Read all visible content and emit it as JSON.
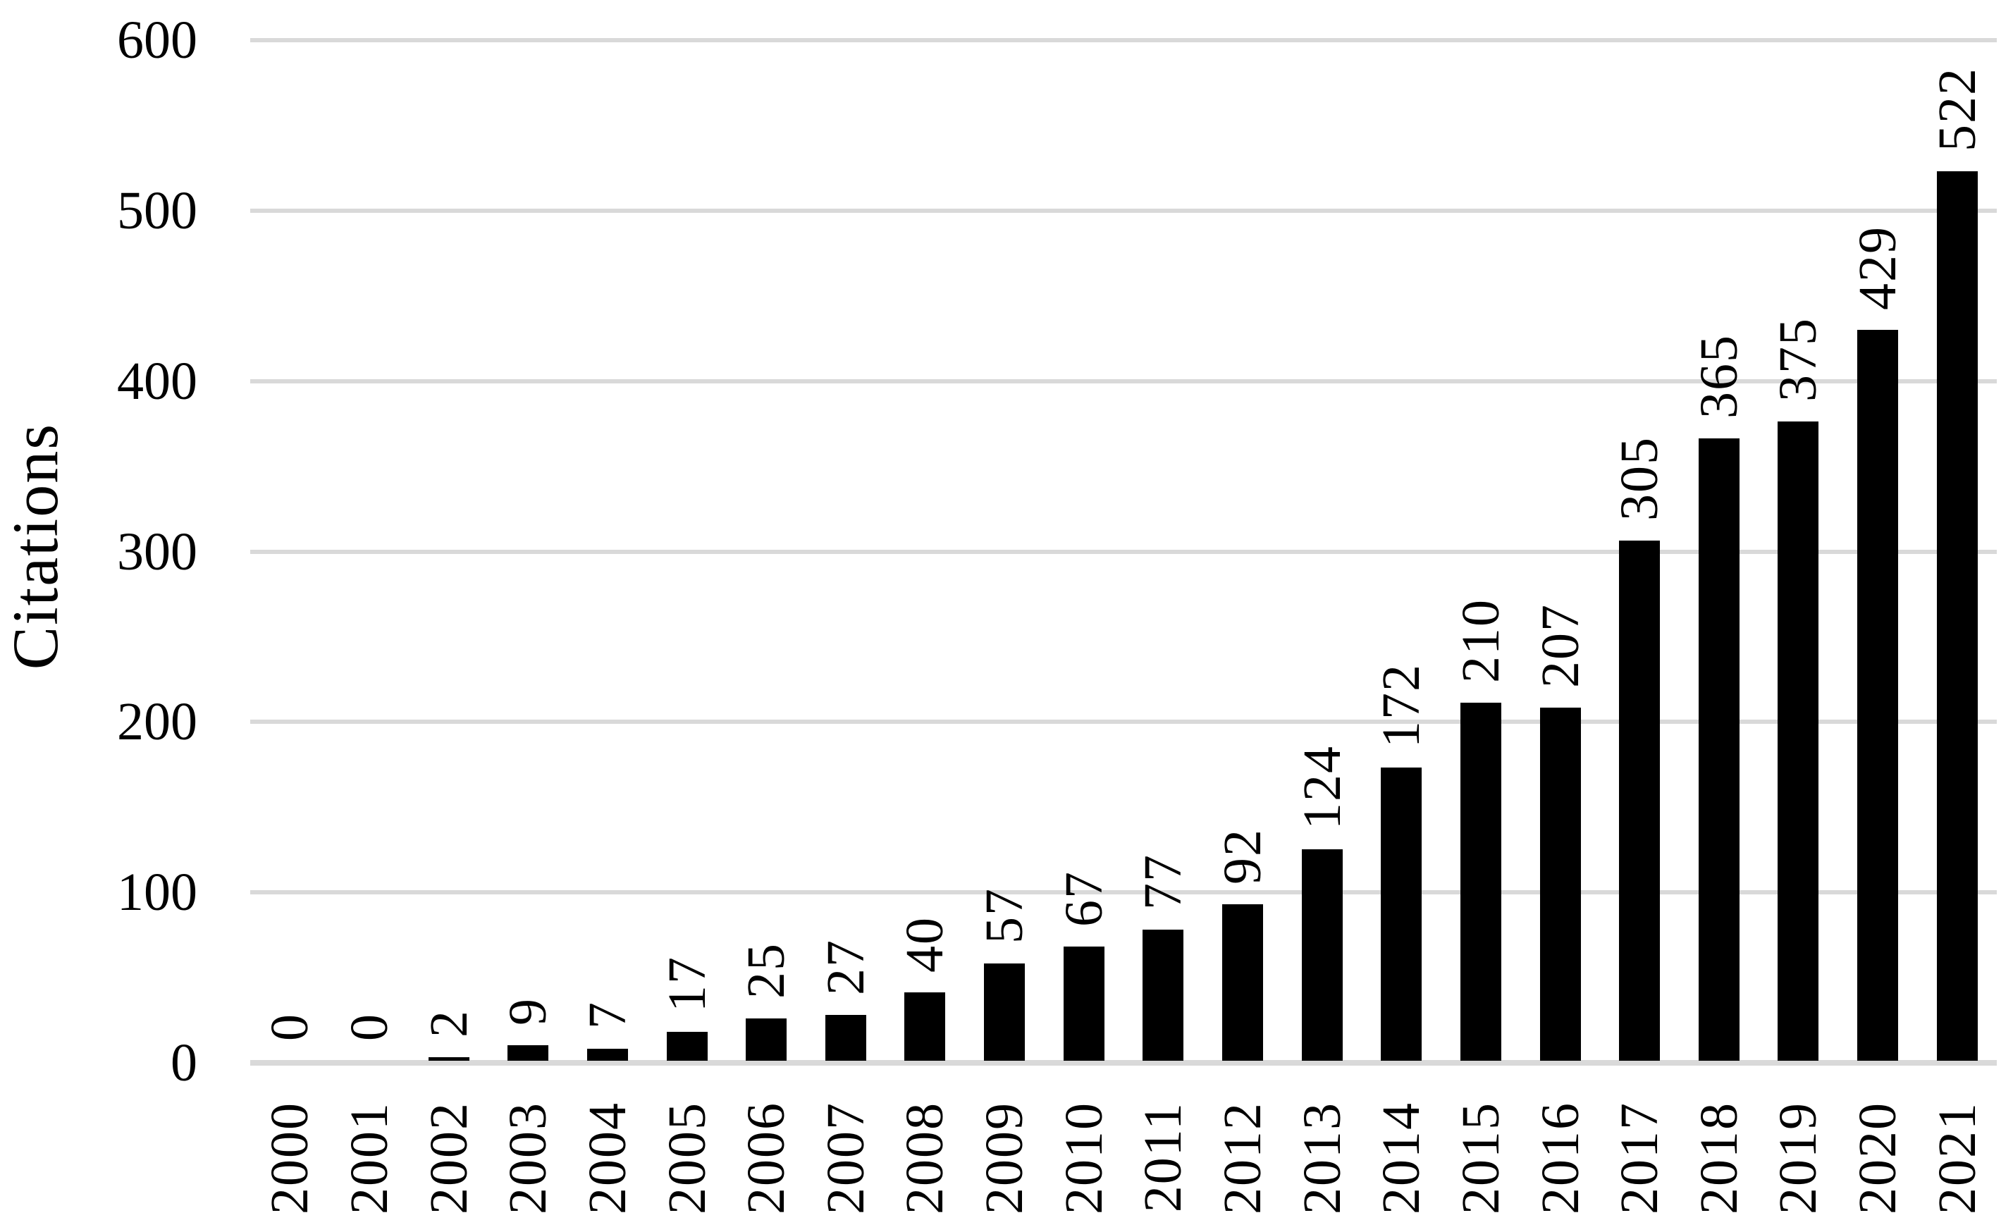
{
  "chart_data": {
    "type": "bar",
    "title": "",
    "xlabel": "",
    "ylabel": "Citations",
    "categories": [
      "2000",
      "2001",
      "2002",
      "2003",
      "2004",
      "2005",
      "2006",
      "2007",
      "2008",
      "2009",
      "2010",
      "2011",
      "2012",
      "2013",
      "2014",
      "2015",
      "2016",
      "2017",
      "2018",
      "2019",
      "2020",
      "2021"
    ],
    "values": [
      0,
      0,
      2,
      9,
      7,
      17,
      25,
      27,
      40,
      57,
      67,
      77,
      92,
      124,
      172,
      210,
      207,
      305,
      365,
      375,
      429,
      522
    ],
    "yticks": [
      0,
      100,
      200,
      300,
      400,
      500,
      600
    ],
    "ylim": [
      0,
      600
    ],
    "grid": true,
    "legend": "none",
    "data_labels": "outside-end",
    "data_label_rotation": 90,
    "x_tick_rotation": 90,
    "bar_color": "#000000",
    "gridline_color": "#d9d9d9",
    "text_color": "#000000",
    "background_color": "#ffffff"
  }
}
